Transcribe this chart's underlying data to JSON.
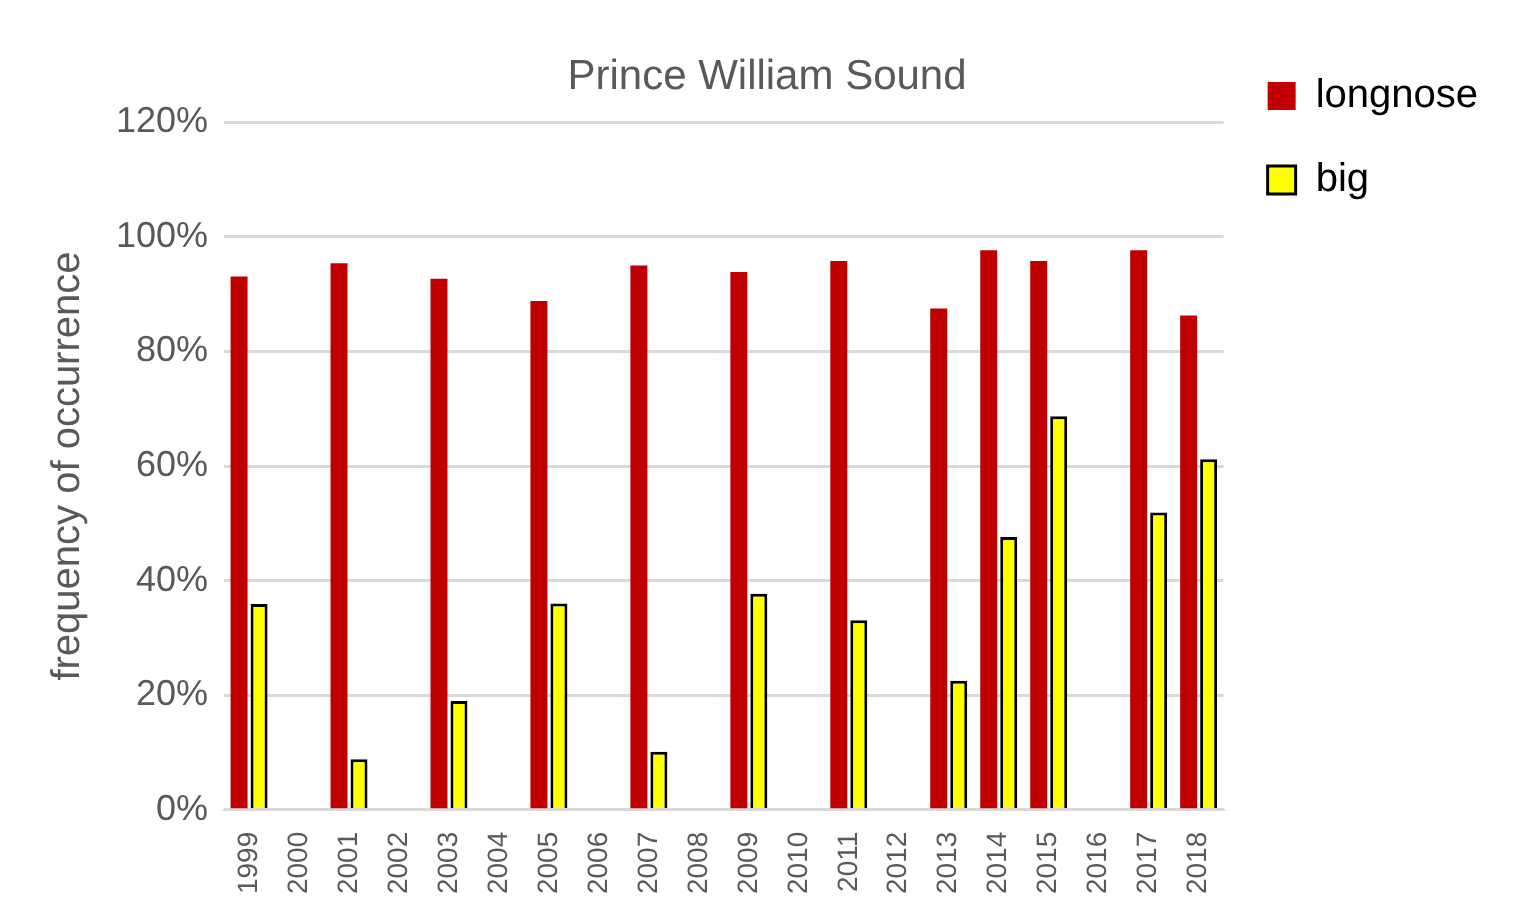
{
  "chart_data": {
    "type": "bar",
    "title": "Prince William Sound",
    "ylabel": "frequency of occurrence",
    "categories": [
      "1999",
      "2000",
      "2001",
      "2002",
      "2003",
      "2004",
      "2005",
      "2006",
      "2007",
      "2008",
      "2009",
      "2010",
      "2011",
      "2012",
      "2013",
      "2014",
      "2015",
      "2016",
      "2017",
      "2018"
    ],
    "series": [
      {
        "name": "longnose",
        "color": "#c00000",
        "values": [
          93.1,
          null,
          95.4,
          null,
          92.7,
          null,
          88.8,
          null,
          95,
          null,
          93.9,
          null,
          95.8,
          null,
          87.5,
          97.7,
          95.8,
          null,
          97.7,
          86.3
        ]
      },
      {
        "name": "big",
        "color": "#ffff00",
        "values": [
          35.9,
          null,
          8.8,
          null,
          19,
          null,
          36,
          null,
          10.1,
          null,
          37.7,
          null,
          33.1,
          null,
          22.5,
          47.6,
          68.7,
          null,
          51.9,
          61.2
        ]
      }
    ],
    "ylim": [
      0,
      120
    ],
    "yticks": [
      {
        "value": 0,
        "label": "0%"
      },
      {
        "value": 20,
        "label": "20%"
      },
      {
        "value": 40,
        "label": "40%"
      },
      {
        "value": 60,
        "label": "60%"
      },
      {
        "value": 80,
        "label": "80%"
      },
      {
        "value": 100,
        "label": "100%"
      },
      {
        "value": 120,
        "label": "120%"
      }
    ],
    "grid": "y",
    "legend": "top right"
  }
}
